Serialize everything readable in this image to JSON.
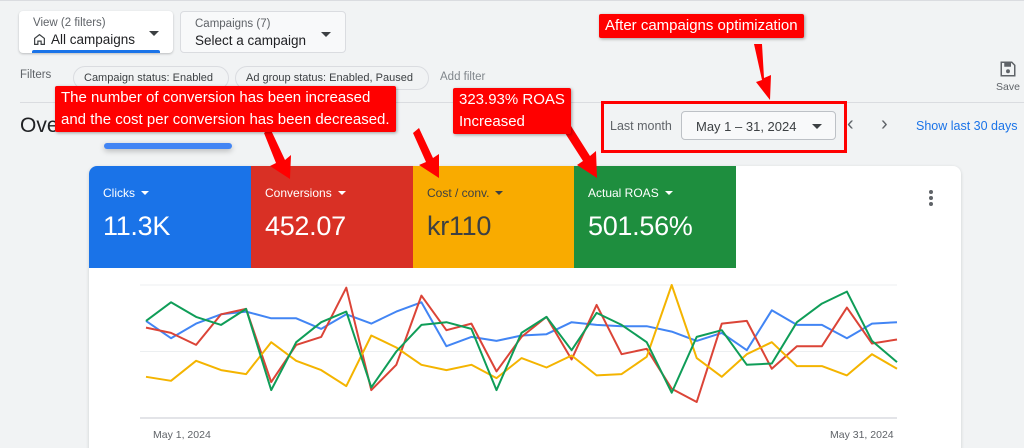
{
  "header": {
    "view_picker": {
      "label": "View (2 filters)",
      "value": "All campaigns",
      "icon": "home-icon"
    },
    "campaign_picker": {
      "label": "Campaigns (7)",
      "value": "Select a campaign"
    },
    "filters_label": "Filters",
    "filter_chips": [
      "Campaign status: Enabled",
      "Ad group status: Enabled, Paused"
    ],
    "add_filter": "Add filter",
    "save_label": "Save"
  },
  "overview": {
    "title": "Overview",
    "date_range_label": "Last month",
    "date_range_value": "May 1 – 31, 2024",
    "show_last_30": "Show last 30 days"
  },
  "metrics": [
    {
      "label": "Clicks",
      "value": "11.3K",
      "color": "#1a73e8"
    },
    {
      "label": "Conversions",
      "value": "452.07",
      "color": "#d93025"
    },
    {
      "label": "Cost / conv.",
      "value": "kr110",
      "color": "#f9ab00"
    },
    {
      "label": "Actual ROAS",
      "value": "501.56%",
      "color": "#1e8e3e"
    }
  ],
  "annotations": {
    "conversions_line1": "The number of conversion has been increased",
    "conversions_line2": "and the cost per conversion has been decreased.",
    "roas_line1": "323.93% ROAS",
    "roas_line2": "Increased",
    "after_optimization": "After campaigns optimization"
  },
  "chart_data": {
    "type": "line",
    "title": "",
    "xlabel": "",
    "ylabel": "",
    "x_start_label": "May 1, 2024",
    "x_end_label": "May 31, 2024",
    "x": [
      1,
      2,
      3,
      4,
      5,
      6,
      7,
      8,
      9,
      10,
      11,
      12,
      13,
      14,
      15,
      16,
      17,
      18,
      19,
      20,
      21,
      22,
      23,
      24,
      25,
      26,
      27,
      28,
      29,
      30,
      31
    ],
    "grid": true,
    "ylim": [
      0,
      100
    ],
    "series": [
      {
        "name": "Clicks",
        "color": "#4285f4",
        "values": [
          73,
          60,
          71,
          78,
          80,
          75,
          75,
          67,
          78,
          71,
          80,
          87,
          54,
          61,
          58,
          62,
          63,
          72,
          70,
          69,
          69,
          65,
          58,
          64,
          51,
          81,
          70,
          70,
          60,
          71,
          72
        ]
      },
      {
        "name": "Conversions",
        "color": "#db4437",
        "values": [
          68,
          64,
          55,
          78,
          82,
          27,
          55,
          61,
          98,
          21,
          40,
          92,
          66,
          71,
          35,
          61,
          76,
          44,
          85,
          48,
          52,
          22,
          12,
          71,
          73,
          37,
          54,
          54,
          83,
          56,
          59
        ]
      },
      {
        "name": "Cost / conv.",
        "color": "#f4b400",
        "values": [
          31,
          28,
          43,
          36,
          33,
          57,
          43,
          36,
          24,
          62,
          53,
          40,
          36,
          40,
          30,
          45,
          38,
          47,
          32,
          33,
          46,
          100,
          45,
          31,
          48,
          57,
          39,
          39,
          32,
          48,
          37
        ]
      },
      {
        "name": "Actual ROAS",
        "color": "#0f9d58",
        "values": [
          73,
          87,
          76,
          70,
          82,
          21,
          57,
          72,
          80,
          23,
          50,
          70,
          72,
          67,
          21,
          64,
          76,
          51,
          79,
          70,
          57,
          19,
          61,
          66,
          40,
          41,
          72,
          86,
          95,
          58,
          42
        ]
      }
    ]
  }
}
